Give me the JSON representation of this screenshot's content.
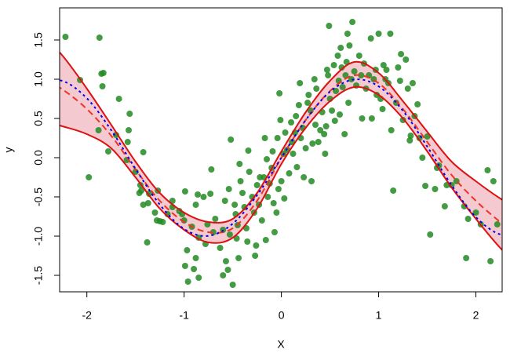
{
  "chart_data": {
    "type": "scatter",
    "x_label": "X",
    "y_label": "y",
    "xlim": [
      -2.28,
      2.27
    ],
    "ylim": [
      -1.71,
      1.91
    ],
    "xticks": [
      -2,
      -1,
      0,
      1,
      2
    ],
    "yticks": [
      -1.5,
      {
        "value": -1.0,
        "label": "-1.0"
      },
      -0.5,
      {
        "value": 0,
        "label": "0.0"
      },
      0.5,
      {
        "value": 1.0,
        "label": "1.0"
      },
      1.5
    ],
    "points": {
      "color": "#228b22",
      "x": [
        -2.22,
        -2.07,
        -1.87,
        -1.83,
        -1.85,
        -1.84,
        -1.88,
        -1.98,
        -1.78,
        -1.7,
        -1.67,
        -1.56,
        -1.57,
        -1.58,
        -1.59,
        -1.5,
        -1.45,
        -1.44,
        -1.46,
        -1.36,
        -1.42,
        -1.37,
        -1.42,
        -1.38,
        -1.27,
        -1.3,
        -1.28,
        -1.25,
        -1.22,
        -1.17,
        -1.12,
        -1.12,
        -1.05,
        -1.02,
        -1.0,
        -0.99,
        -0.97,
        -0.99,
        -0.96,
        -0.92,
        -0.9,
        -0.88,
        -0.85,
        -0.88,
        -0.86,
        -0.85,
        -0.8,
        -0.78,
        -0.76,
        -0.73,
        -0.72,
        -0.7,
        -0.68,
        -0.63,
        -0.6,
        -0.6,
        -0.58,
        -0.57,
        -0.55,
        -0.54,
        -0.53,
        -0.52,
        -0.5,
        -0.48,
        -0.47,
        -0.46,
        -0.45,
        -0.44,
        -0.43,
        -0.42,
        -0.4,
        -0.38,
        -0.36,
        -0.35,
        -0.34,
        -0.33,
        -0.3,
        -0.28,
        -0.27,
        -0.26,
        -0.25,
        -0.23,
        -0.22,
        -0.2,
        -0.18,
        -0.17,
        -0.16,
        -0.15,
        -0.14,
        -0.12,
        -0.1,
        -0.09,
        -0.08,
        -0.07,
        -0.05,
        -0.04,
        -0.03,
        -0.02,
        -0.01,
        0.0,
        0.02,
        0.03,
        0.04,
        0.06,
        0.08,
        0.1,
        0.11,
        0.12,
        0.14,
        0.15,
        0.16,
        0.18,
        0.19,
        0.2,
        0.22,
        0.23,
        0.25,
        0.27,
        0.28,
        0.3,
        0.31,
        0.32,
        0.34,
        0.35,
        0.36,
        0.38,
        0.4,
        0.42,
        0.44,
        0.45,
        0.46,
        0.47,
        0.48,
        0.49,
        0.5,
        0.52,
        0.54,
        0.55,
        0.56,
        0.58,
        0.59,
        0.6,
        0.61,
        0.62,
        0.63,
        0.65,
        0.66,
        0.67,
        0.68,
        0.69,
        0.7,
        0.72,
        0.73,
        0.75,
        0.77,
        0.8,
        0.82,
        0.83,
        0.85,
        0.87,
        0.9,
        0.92,
        0.93,
        0.95,
        0.97,
        0.98,
        1.0,
        1.02,
        1.04,
        1.05,
        1.07,
        1.08,
        1.1,
        1.12,
        1.13,
        1.15,
        1.18,
        1.2,
        1.22,
        1.23,
        1.25,
        1.28,
        1.3,
        1.32,
        1.33,
        1.35,
        1.37,
        1.4,
        1.42,
        1.45,
        1.48,
        1.5,
        1.53,
        1.58,
        1.6,
        1.62,
        1.68,
        1.7,
        1.75,
        1.8,
        1.9,
        1.88,
        1.92,
        2.0,
        2.05,
        2.12,
        2.15,
        2.18,
        2.22
      ],
      "y": [
        1.54,
        0.99,
        1.53,
        1.08,
        1.07,
        0.91,
        0.35,
        -0.25,
        0.08,
        0.29,
        0.75,
        0.56,
        0.35,
        0.2,
        -0.03,
        -0.18,
        -0.35,
        -0.42,
        -0.45,
        -0.46,
        0.07,
        -0.58,
        -0.6,
        -1.08,
        -0.42,
        -0.7,
        -0.8,
        -0.81,
        -0.82,
        -0.72,
        -0.55,
        -0.63,
        -0.68,
        -0.72,
        -0.8,
        -0.43,
        -1.18,
        -1.38,
        -1.58,
        -0.88,
        -1.42,
        -1.28,
        -1.53,
        -0.6,
        -0.47,
        -1.02,
        -0.5,
        -1.1,
        -0.85,
        -0.46,
        -0.15,
        -0.95,
        -0.78,
        -1.15,
        -0.92,
        -1.5,
        -0.55,
        -1.32,
        -1.43,
        -0.4,
        -0.98,
        0.23,
        -1.62,
        -0.6,
        -0.72,
        -1.03,
        -0.86,
        -1.28,
        -0.08,
        -0.3,
        -0.45,
        -0.63,
        -0.9,
        -1.07,
        0.09,
        -0.18,
        -0.5,
        -0.7,
        -1.25,
        -1.12,
        -0.35,
        -0.6,
        -0.25,
        -0.8,
        -0.25,
        0.25,
        -1.05,
        -0.02,
        -0.5,
        -0.33,
        -0.13,
        0.08,
        -0.58,
        -0.95,
        -0.7,
        0.25,
        -0.4,
        0.82,
        0.48,
        -0.3,
        0.05,
        -0.52,
        0.32,
        0.1,
        -0.2,
        0.45,
        0.2,
        0.05,
        0.32,
        0.53,
        -0.12,
        0.67,
        0.95,
        0.25,
        0.38,
        -0.25,
        0.12,
        0.7,
        0.8,
        0.6,
        -0.3,
        0.18,
        1.0,
        0.42,
        0.88,
        0.2,
        0.35,
        0.58,
        0.3,
        0.05,
        0.4,
        1.12,
        1.05,
        1.68,
        0.75,
        0.6,
        1.18,
        0.47,
        0.85,
        1.3,
        0.98,
        0.55,
        1.4,
        1.15,
        0.9,
        0.3,
        1.05,
        1.22,
        1.58,
        0.7,
        1.43,
        1.0,
        1.73,
        1.1,
        0.92,
        1.3,
        1.05,
        0.5,
        1.2,
        0.88,
        1.05,
        1.52,
        0.5,
        1.0,
        1.12,
        0.8,
        1.58,
        0.75,
        0.62,
        1.18,
        1.0,
        1.12,
        0.95,
        1.58,
        0.35,
        -0.42,
        0.7,
        1.15,
        0.98,
        1.32,
        0.48,
        1.25,
        0.88,
        0.22,
        0.28,
        0.95,
        0.53,
        0.68,
        0.25,
        0.0,
        -0.36,
        0.27,
        -0.98,
        -0.4,
        -0.13,
        -0.1,
        -0.62,
        -0.35,
        -0.35,
        -0.3,
        -1.28,
        -0.62,
        -0.78,
        -0.7,
        -0.85,
        -0.16,
        -1.32,
        -0.3,
        -0.85
      ]
    },
    "band": {
      "fill": "#f4c9cf",
      "color": "#dd1111",
      "x": [
        -2.5,
        -2.25,
        -2.0,
        -1.75,
        -1.5,
        -1.25,
        -1.0,
        -0.75,
        -0.5,
        -0.25,
        0,
        0.25,
        0.5,
        0.75,
        1.0,
        1.25,
        1.5,
        1.75,
        2.0,
        2.25,
        2.5
      ],
      "upper": [
        1.62,
        1.3,
        0.88,
        0.42,
        -0.05,
        -0.45,
        -0.7,
        -0.82,
        -0.78,
        -0.45,
        0.08,
        0.58,
        0.98,
        1.22,
        1.08,
        0.72,
        0.33,
        -0.05,
        -0.3,
        -0.52,
        -0.7
      ],
      "lower": [
        0.48,
        0.4,
        0.3,
        0.12,
        -0.25,
        -0.65,
        -0.92,
        -1.08,
        -1.02,
        -0.65,
        -0.08,
        0.38,
        0.72,
        0.9,
        0.8,
        0.5,
        0.08,
        -0.38,
        -0.78,
        -1.15,
        -1.45
      ]
    },
    "lines": [
      {
        "color": "#ee3322",
        "dash": "8,5",
        "x": [
          -2.5,
          -2.25,
          -2.0,
          -1.75,
          -1.5,
          -1.25,
          -1.0,
          -0.75,
          -0.5,
          -0.25,
          0,
          0.25,
          0.5,
          0.75,
          1.0,
          1.25,
          1.5,
          1.75,
          2.0,
          2.25,
          2.5
        ],
        "y": [
          1.05,
          0.87,
          0.62,
          0.28,
          -0.15,
          -0.55,
          -0.82,
          -0.95,
          -0.9,
          -0.55,
          0.0,
          0.48,
          0.85,
          1.05,
          0.95,
          0.62,
          0.2,
          -0.22,
          -0.55,
          -0.82,
          -1.05
        ]
      },
      {
        "color": "#0000ee",
        "dash": "3,4",
        "x": [
          -2.5,
          -2.25,
          -2.0,
          -1.75,
          -1.5,
          -1.25,
          -1.0,
          -0.75,
          -0.5,
          -0.25,
          0,
          0.25,
          0.5,
          0.75,
          1.0,
          1.25,
          1.5,
          1.75,
          2.0,
          2.25,
          2.5
        ],
        "y": [
          0.959,
          0.978,
          0.757,
          0.351,
          -0.141,
          -0.598,
          -0.909,
          -0.997,
          -0.841,
          -0.479,
          0,
          0.479,
          0.841,
          0.997,
          0.909,
          0.598,
          0.141,
          -0.351,
          -0.757,
          -0.978,
          -0.959
        ]
      }
    ]
  }
}
